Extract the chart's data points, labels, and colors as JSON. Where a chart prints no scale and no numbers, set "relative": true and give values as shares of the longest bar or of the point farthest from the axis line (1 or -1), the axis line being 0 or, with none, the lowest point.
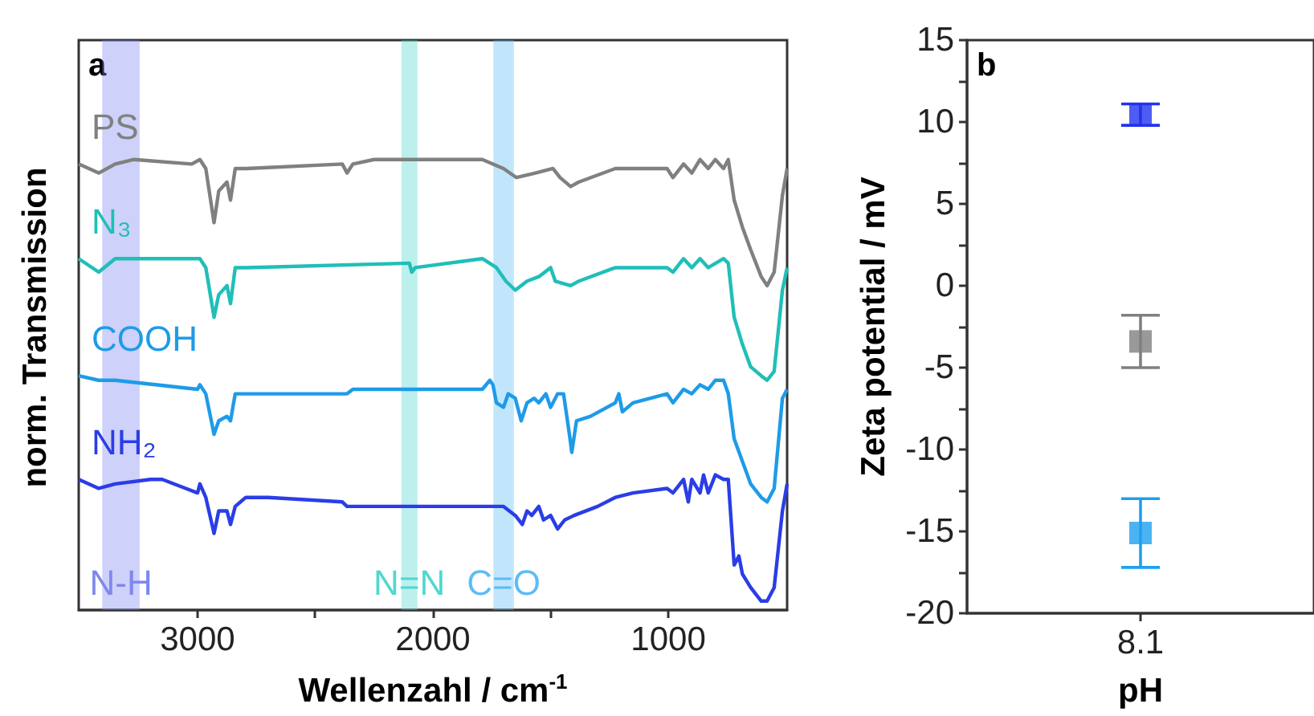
{
  "chart_data": [
    {
      "type": "line",
      "title": "a",
      "xlabel": "Wellenzahl / cm$^{-1}$",
      "ylabel": "norm. Transmission",
      "relative": true,
      "legend": false,
      "grid": false,
      "xlim": [
        3505,
        495
      ],
      "xticks": [
        3000,
        {
          "value": 2500,
          "label": null
        },
        2000,
        {
          "value": 1500,
          "label": null
        },
        1000
      ],
      "bands": [
        {
          "axis": "x",
          "from": 3405,
          "to": 3246,
          "label": "N-H",
          "color": "#7f87ee"
        },
        {
          "axis": "x",
          "from": 2134,
          "to": 2066,
          "label": "N=N",
          "color": "#4fd8d0"
        },
        {
          "axis": "x",
          "from": 1743,
          "to": 1656,
          "label": "C=O",
          "color": "#5bbcf7"
        }
      ],
      "series": [
        {
          "name": "PS",
          "color": "#808080",
          "x": [
            3505,
            3420,
            3350,
            3270,
            3025,
            2990,
            2965,
            2930,
            2910,
            2875,
            2860,
            2840,
            2795,
            2385,
            2365,
            2340,
            2250,
            1790,
            1700,
            1645,
            1565,
            1490,
            1460,
            1415,
            1380,
            1225,
            1005,
            980,
            935,
            900,
            865,
            830,
            800,
            765,
            745,
            720,
            685,
            650,
            605,
            580,
            550,
            515,
            495
          ],
          "values": [
            0.99,
            0.97,
            0.99,
            1.0,
            0.99,
            1.0,
            0.98,
            0.86,
            0.93,
            0.95,
            0.91,
            0.98,
            0.98,
            0.99,
            0.97,
            0.99,
            1.0,
            1.0,
            0.98,
            0.96,
            0.97,
            0.98,
            0.96,
            0.94,
            0.95,
            0.98,
            0.98,
            0.96,
            0.99,
            0.97,
            1.0,
            0.98,
            1.0,
            0.98,
            1.0,
            0.91,
            0.85,
            0.8,
            0.74,
            0.72,
            0.75,
            0.92,
            0.98
          ]
        },
        {
          "name": "N₃",
          "color": "#1fbfb8",
          "x": [
            3505,
            3420,
            3350,
            3000,
            2990,
            2965,
            2930,
            2910,
            2875,
            2860,
            2840,
            2795,
            2100,
            2090,
            2075,
            1790,
            1730,
            1690,
            1650,
            1600,
            1550,
            1500,
            1480,
            1415,
            1380,
            1225,
            1005,
            980,
            935,
            900,
            865,
            830,
            765,
            745,
            720,
            685,
            650,
            605,
            580,
            550,
            515,
            495
          ],
          "values": [
            0.78,
            0.75,
            0.78,
            0.78,
            0.78,
            0.76,
            0.65,
            0.7,
            0.72,
            0.68,
            0.76,
            0.76,
            0.77,
            0.75,
            0.76,
            0.78,
            0.76,
            0.73,
            0.71,
            0.73,
            0.74,
            0.76,
            0.73,
            0.72,
            0.73,
            0.76,
            0.76,
            0.75,
            0.78,
            0.76,
            0.78,
            0.76,
            0.78,
            0.77,
            0.65,
            0.59,
            0.54,
            0.52,
            0.51,
            0.53,
            0.71,
            0.76
          ]
        },
        {
          "name": "COOH",
          "color": "#1e9be8",
          "x": [
            3505,
            3420,
            3350,
            3000,
            2990,
            2965,
            2930,
            2910,
            2875,
            2860,
            2840,
            2795,
            2385,
            2365,
            2340,
            1790,
            1758,
            1745,
            1730,
            1700,
            1680,
            1650,
            1625,
            1600,
            1570,
            1550,
            1520,
            1500,
            1470,
            1445,
            1420,
            1410,
            1390,
            1330,
            1225,
            1210,
            1195,
            1150,
            1005,
            980,
            935,
            900,
            865,
            830,
            800,
            765,
            745,
            720,
            685,
            650,
            605,
            580,
            550,
            515,
            495
          ],
          "values": [
            0.52,
            0.51,
            0.51,
            0.49,
            0.5,
            0.48,
            0.39,
            0.42,
            0.43,
            0.42,
            0.48,
            0.48,
            0.48,
            0.48,
            0.49,
            0.49,
            0.51,
            0.5,
            0.46,
            0.45,
            0.48,
            0.47,
            0.42,
            0.46,
            0.47,
            0.46,
            0.48,
            0.45,
            0.48,
            0.48,
            0.39,
            0.35,
            0.42,
            0.43,
            0.46,
            0.48,
            0.44,
            0.46,
            0.48,
            0.46,
            0.49,
            0.48,
            0.5,
            0.49,
            0.51,
            0.51,
            0.48,
            0.38,
            0.33,
            0.28,
            0.25,
            0.24,
            0.27,
            0.47,
            0.49
          ]
        },
        {
          "name": "NH₂",
          "color": "#2a3de6",
          "x": [
            3505,
            3420,
            3350,
            3200,
            3150,
            3050,
            3000,
            2990,
            2965,
            2930,
            2910,
            2875,
            2860,
            2840,
            2795,
            2700,
            2385,
            2365,
            1790,
            1700,
            1650,
            1620,
            1600,
            1580,
            1550,
            1530,
            1500,
            1470,
            1440,
            1400,
            1300,
            1225,
            1150,
            1005,
            980,
            950,
            935,
            915,
            900,
            865,
            850,
            830,
            800,
            765,
            745,
            720,
            700,
            685,
            650,
            605,
            580,
            550,
            515,
            495
          ],
          "values": [
            0.29,
            0.27,
            0.28,
            0.29,
            0.29,
            0.27,
            0.26,
            0.28,
            0.25,
            0.17,
            0.22,
            0.22,
            0.19,
            0.23,
            0.25,
            0.25,
            0.24,
            0.23,
            0.23,
            0.23,
            0.21,
            0.19,
            0.22,
            0.21,
            0.23,
            0.2,
            0.21,
            0.18,
            0.2,
            0.21,
            0.23,
            0.25,
            0.26,
            0.27,
            0.26,
            0.28,
            0.29,
            0.24,
            0.29,
            0.26,
            0.3,
            0.26,
            0.3,
            0.29,
            0.29,
            0.1,
            0.12,
            0.08,
            0.05,
            0.02,
            0.02,
            0.05,
            0.22,
            0.28
          ]
        }
      ]
    },
    {
      "type": "scatter",
      "title": "b",
      "xlabel": "pH",
      "ylabel": "Zeta potential / mV",
      "legend": false,
      "grid": false,
      "marker": "square",
      "categories": [
        "8.1"
      ],
      "ylim": [
        -20,
        15
      ],
      "yticks": [
        -20,
        {
          "value": -17.5,
          "label": null
        },
        -15,
        {
          "value": -12.5,
          "label": null
        },
        -10,
        {
          "value": -7.5,
          "label": null
        },
        -5,
        {
          "value": -2.5,
          "label": null
        },
        0,
        {
          "value": 2.5,
          "label": null
        },
        5,
        {
          "value": 7.5,
          "label": null
        },
        10,
        {
          "value": 12.5,
          "label": null
        },
        15
      ],
      "series": [
        {
          "color": "#2233ee",
          "values": [
            10.4
          ],
          "errors": [
            [
              9.8,
              11.1
            ]
          ]
        },
        {
          "color": "#808080",
          "values": [
            -3.4
          ],
          "errors": [
            [
              -5.0,
              -1.8
            ]
          ]
        },
        {
          "color": "#1ea0f0",
          "values": [
            -15.1
          ],
          "errors": [
            [
              -17.2,
              -13.0
            ]
          ]
        }
      ]
    }
  ]
}
